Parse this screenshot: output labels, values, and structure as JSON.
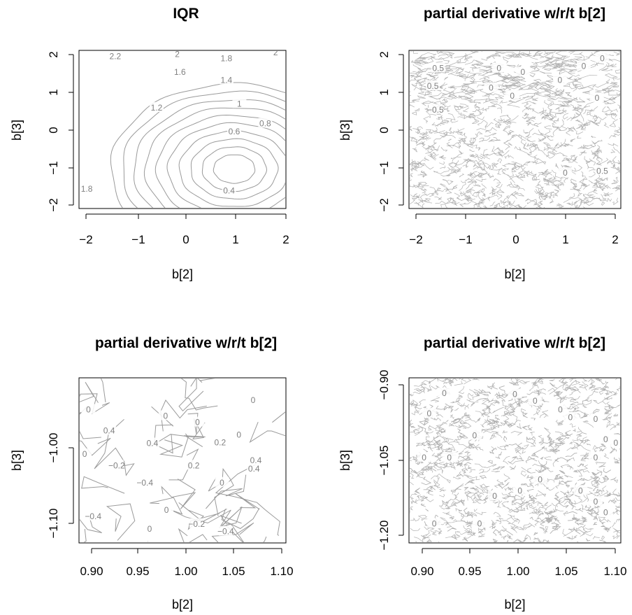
{
  "chart_data": [
    {
      "type": "contour",
      "title": "IQR",
      "xlabel": "b[2]",
      "ylabel": "b[3]",
      "xlim": [
        -2,
        2
      ],
      "ylim": [
        -2,
        2
      ],
      "xticks": [
        "−2",
        "−1",
        "0",
        "1",
        "2"
      ],
      "yticks": [
        "−2",
        "−1",
        "0",
        "1",
        "2"
      ],
      "contour_levels": [
        0.4,
        0.6,
        0.8,
        1,
        1.2,
        1.4,
        1.6,
        1.8,
        2,
        2.2
      ],
      "minimum": {
        "x": 1.0,
        "y": -1.0
      },
      "labels": [
        {
          "text": "2.2",
          "x": -1.3,
          "y": 1.85
        },
        {
          "text": "2",
          "x": -0.1,
          "y": 1.9
        },
        {
          "text": "1.8",
          "x": 0.85,
          "y": 1.8
        },
        {
          "text": "2",
          "x": 1.8,
          "y": 1.95
        },
        {
          "text": "1.6",
          "x": -0.05,
          "y": 1.45
        },
        {
          "text": "1.4",
          "x": 0.85,
          "y": 1.25
        },
        {
          "text": "1.2",
          "x": -0.5,
          "y": 0.55
        },
        {
          "text": "1",
          "x": 1.1,
          "y": 0.65
        },
        {
          "text": "0.6",
          "x": 1.0,
          "y": -0.05
        },
        {
          "text": "0.8",
          "x": 1.6,
          "y": 0.15
        },
        {
          "text": "1.8",
          "x": -1.85,
          "y": -1.5
        },
        {
          "text": "0.4",
          "x": 0.9,
          "y": -1.55
        }
      ]
    },
    {
      "type": "contour",
      "title": "partial derivative w/r/t b[2]",
      "xlabel": "b[2]",
      "ylabel": "b[3]",
      "xlim": [
        -2,
        2
      ],
      "ylim": [
        -2,
        2
      ],
      "xticks": [
        "−2",
        "−1",
        "0",
        "1",
        "2"
      ],
      "yticks": [
        "−2",
        "−1",
        "0",
        "1",
        "2"
      ],
      "labels": [
        {
          "text": "0.5",
          "x": -1.45,
          "y": 1.55
        },
        {
          "text": "0.5",
          "x": -1.55,
          "y": 1.1
        },
        {
          "text": "−0.5",
          "x": -1.5,
          "y": 0.5
        },
        {
          "text": "0",
          "x": -0.3,
          "y": 1.55
        },
        {
          "text": "0",
          "x": 0.15,
          "y": 1.45
        },
        {
          "text": "0",
          "x": -0.45,
          "y": 1.05
        },
        {
          "text": "0",
          "x": -0.05,
          "y": 0.85
        },
        {
          "text": "0",
          "x": 0.85,
          "y": 1.25
        },
        {
          "text": "0",
          "x": 1.3,
          "y": 1.6
        },
        {
          "text": "0",
          "x": 1.65,
          "y": 1.8
        },
        {
          "text": "0",
          "x": 1.55,
          "y": 0.8
        },
        {
          "text": "0",
          "x": 0.95,
          "y": -1.1
        },
        {
          "text": "0.5",
          "x": 1.65,
          "y": -1.05
        }
      ]
    },
    {
      "type": "contour",
      "title": "partial derivative w/r/t b[2]",
      "xlabel": "b[2]",
      "ylabel": "b[3]",
      "xlim": [
        0.89,
        1.11
      ],
      "ylim": [
        -1.13,
        -0.87
      ],
      "xticks": [
        "0.90",
        "0.95",
        "1.00",
        "1.05",
        "1.10"
      ],
      "yticks": [
        "−1.10",
        "−1.00"
      ],
      "labels": [
        {
          "text": "0",
          "x": 0.9,
          "y": -0.92
        },
        {
          "text": "0.4",
          "x": 0.922,
          "y": -0.953
        },
        {
          "text": "0",
          "x": 0.896,
          "y": -0.99
        },
        {
          "text": "−0.2",
          "x": 0.93,
          "y": -1.008
        },
        {
          "text": "0.4",
          "x": 0.968,
          "y": -0.973
        },
        {
          "text": "0",
          "x": 0.982,
          "y": -0.93
        },
        {
          "text": "0",
          "x": 1.016,
          "y": -0.94
        },
        {
          "text": "0.2",
          "x": 1.04,
          "y": -0.972
        },
        {
          "text": "0",
          "x": 1.075,
          "y": -0.905
        },
        {
          "text": "0",
          "x": 1.06,
          "y": -0.96
        },
        {
          "text": "0.4",
          "x": 1.078,
          "y": -1.0
        },
        {
          "text": "0.4",
          "x": 1.076,
          "y": -1.013
        },
        {
          "text": "0.2",
          "x": 1.012,
          "y": -1.008
        },
        {
          "text": "−0.4",
          "x": 0.96,
          "y": -1.035
        },
        {
          "text": "0",
          "x": 1.042,
          "y": -1.035
        },
        {
          "text": "0",
          "x": 0.983,
          "y": -1.078
        },
        {
          "text": "−0.4",
          "x": 0.905,
          "y": -1.088
        },
        {
          "text": "0",
          "x": 0.965,
          "y": -1.108
        },
        {
          "text": "−0.2",
          "x": 1.015,
          "y": -1.1
        },
        {
          "text": "−0.4",
          "x": 1.046,
          "y": -1.112
        },
        {
          "text": "−0.2",
          "x": 0.963,
          "y": -1.136
        }
      ]
    },
    {
      "type": "contour",
      "title": "partial derivative w/r/t b[2]",
      "xlabel": "b[2]",
      "ylabel": "b[3]",
      "xlim": [
        0.89,
        1.1
      ],
      "ylim": [
        -1.2,
        -0.9
      ],
      "xticks": [
        "0.90",
        "0.95",
        "1.00",
        "1.05",
        "1.10"
      ],
      "yticks": [
        "−1.20",
        "−1.05",
        "−0.90"
      ],
      "labels": [
        {
          "text": "0",
          "x": 0.925,
          "y": -0.928
        },
        {
          "text": "0",
          "x": 0.91,
          "y": -0.965
        },
        {
          "text": "0",
          "x": 0.955,
          "y": -1.005
        },
        {
          "text": "0",
          "x": 0.905,
          "y": -1.045
        },
        {
          "text": "0",
          "x": 0.93,
          "y": -1.045
        },
        {
          "text": "0",
          "x": 0.995,
          "y": -0.93
        },
        {
          "text": "0",
          "x": 1.015,
          "y": -0.942
        },
        {
          "text": "0",
          "x": 1.04,
          "y": -0.958
        },
        {
          "text": "0",
          "x": 1.05,
          "y": -0.972
        },
        {
          "text": "0",
          "x": 1.075,
          "y": -0.975
        },
        {
          "text": "0",
          "x": 1.085,
          "y": -1.012
        },
        {
          "text": "0",
          "x": 1.095,
          "y": -1.018
        },
        {
          "text": "0",
          "x": 1.075,
          "y": -1.045
        },
        {
          "text": "0",
          "x": 1.02,
          "y": -1.085
        },
        {
          "text": "0",
          "x": 1.0,
          "y": -1.105
        },
        {
          "text": "0",
          "x": 0.975,
          "y": -1.115
        },
        {
          "text": "0",
          "x": 1.06,
          "y": -1.105
        },
        {
          "text": "0",
          "x": 1.075,
          "y": -1.125
        },
        {
          "text": "0",
          "x": 1.085,
          "y": -1.145
        },
        {
          "text": "0",
          "x": 0.915,
          "y": -1.165
        },
        {
          "text": "0",
          "x": 0.96,
          "y": -1.165
        }
      ]
    }
  ],
  "colors": {
    "contour": "#9a9a9a",
    "contour_label": "#808080",
    "axis": "#000000"
  }
}
